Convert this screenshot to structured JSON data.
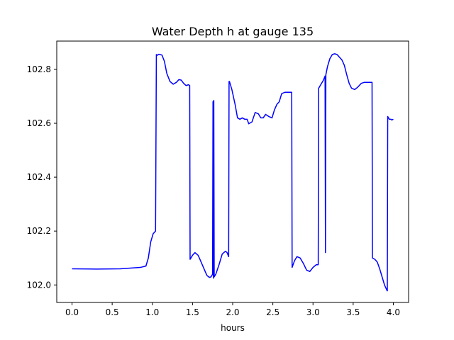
{
  "chart_data": {
    "type": "line",
    "title": "Water Depth h at gauge 135",
    "xlabel": "hours",
    "ylabel": "",
    "xlim": [
      -0.19,
      4.19
    ],
    "ylim": [
      101.935,
      102.905
    ],
    "xticks": [
      0.0,
      0.5,
      1.0,
      1.5,
      2.0,
      2.5,
      3.0,
      3.5,
      4.0
    ],
    "xtick_labels": [
      "0.0",
      "0.5",
      "1.0",
      "1.5",
      "2.0",
      "2.5",
      "3.0",
      "3.5",
      "4.0"
    ],
    "yticks": [
      102.0,
      102.2,
      102.4,
      102.6,
      102.8
    ],
    "ytick_labels": [
      "102.0",
      "102.2",
      "102.4",
      "102.6",
      "102.8"
    ],
    "grid": false,
    "legend": false,
    "series": [
      {
        "color": "#0000ff",
        "x": [
          0.0,
          0.3,
          0.6,
          0.85,
          0.92,
          0.95,
          0.98,
          1.01,
          1.04,
          1.05,
          1.06,
          1.08,
          1.12,
          1.15,
          1.18,
          1.22,
          1.26,
          1.3,
          1.33,
          1.36,
          1.39,
          1.42,
          1.45,
          1.465,
          1.47,
          1.5,
          1.53,
          1.57,
          1.6,
          1.65,
          1.68,
          1.71,
          1.73,
          1.75,
          1.755,
          1.76,
          1.765,
          1.77,
          1.79,
          1.83,
          1.87,
          1.91,
          1.93,
          1.95,
          1.955,
          1.96,
          1.99,
          2.03,
          2.06,
          2.09,
          2.12,
          2.15,
          2.18,
          2.2,
          2.24,
          2.28,
          2.32,
          2.35,
          2.38,
          2.41,
          2.45,
          2.49,
          2.52,
          2.55,
          2.58,
          2.61,
          2.65,
          2.69,
          2.72,
          2.735,
          2.74,
          2.77,
          2.8,
          2.84,
          2.88,
          2.92,
          2.96,
          3.0,
          3.04,
          3.065,
          3.07,
          3.1,
          3.13,
          3.15,
          3.155,
          3.16,
          3.18,
          3.21,
          3.24,
          3.27,
          3.3,
          3.33,
          3.36,
          3.39,
          3.42,
          3.45,
          3.48,
          3.52,
          3.56,
          3.6,
          3.64,
          3.68,
          3.72,
          3.735,
          3.74,
          3.77,
          3.8,
          3.83,
          3.86,
          3.89,
          3.92,
          3.925,
          3.93,
          3.95,
          3.97,
          3.98,
          4.0
        ],
        "y": [
          102.06,
          102.059,
          102.06,
          102.065,
          102.07,
          102.1,
          102.16,
          102.19,
          102.2,
          102.855,
          102.852,
          102.856,
          102.853,
          102.83,
          102.785,
          102.755,
          102.745,
          102.752,
          102.762,
          102.76,
          102.748,
          102.74,
          102.743,
          102.74,
          102.095,
          102.11,
          102.12,
          102.11,
          102.09,
          102.055,
          102.035,
          102.028,
          102.03,
          102.04,
          102.68,
          102.025,
          102.685,
          102.03,
          102.04,
          102.075,
          102.115,
          102.125,
          102.12,
          102.105,
          102.755,
          102.755,
          102.725,
          102.67,
          102.62,
          102.615,
          102.62,
          102.615,
          102.615,
          102.598,
          102.605,
          102.64,
          102.635,
          102.62,
          102.62,
          102.633,
          102.625,
          102.62,
          102.65,
          102.67,
          102.68,
          102.71,
          102.715,
          102.715,
          102.715,
          102.715,
          102.065,
          102.09,
          102.105,
          102.1,
          102.08,
          102.055,
          102.05,
          102.065,
          102.075,
          102.075,
          102.73,
          102.745,
          102.76,
          102.775,
          102.12,
          102.78,
          102.81,
          102.84,
          102.855,
          102.858,
          102.855,
          102.845,
          102.835,
          102.815,
          102.78,
          102.748,
          102.73,
          102.725,
          102.735,
          102.748,
          102.752,
          102.752,
          102.752,
          102.752,
          102.1,
          102.095,
          102.085,
          102.06,
          102.03,
          102.0,
          101.98,
          101.978,
          102.625,
          102.615,
          102.615,
          102.612,
          102.615
        ]
      }
    ]
  }
}
